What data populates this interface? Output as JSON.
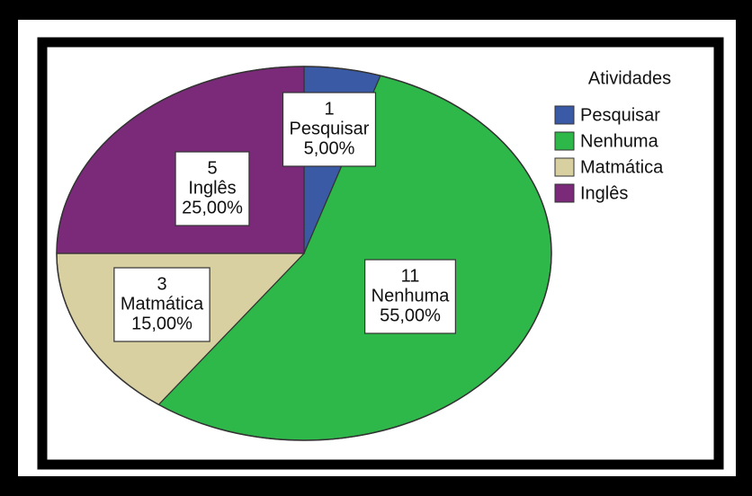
{
  "chart_data": {
    "type": "pie",
    "legend_title": "Atividades",
    "categories": [
      "Pesquisar",
      "Nenhuma",
      "Matmática",
      "Inglês"
    ],
    "values": [
      1,
      11,
      3,
      5
    ],
    "percentages": [
      5,
      55,
      15,
      25
    ],
    "percentage_labels": [
      "5,00%",
      "55,00%",
      "15,00%",
      "25,00%"
    ],
    "colors": [
      "#3a5aa6",
      "#2eb84a",
      "#d9d0a2",
      "#7a2a79"
    ],
    "legend": "upper right"
  }
}
